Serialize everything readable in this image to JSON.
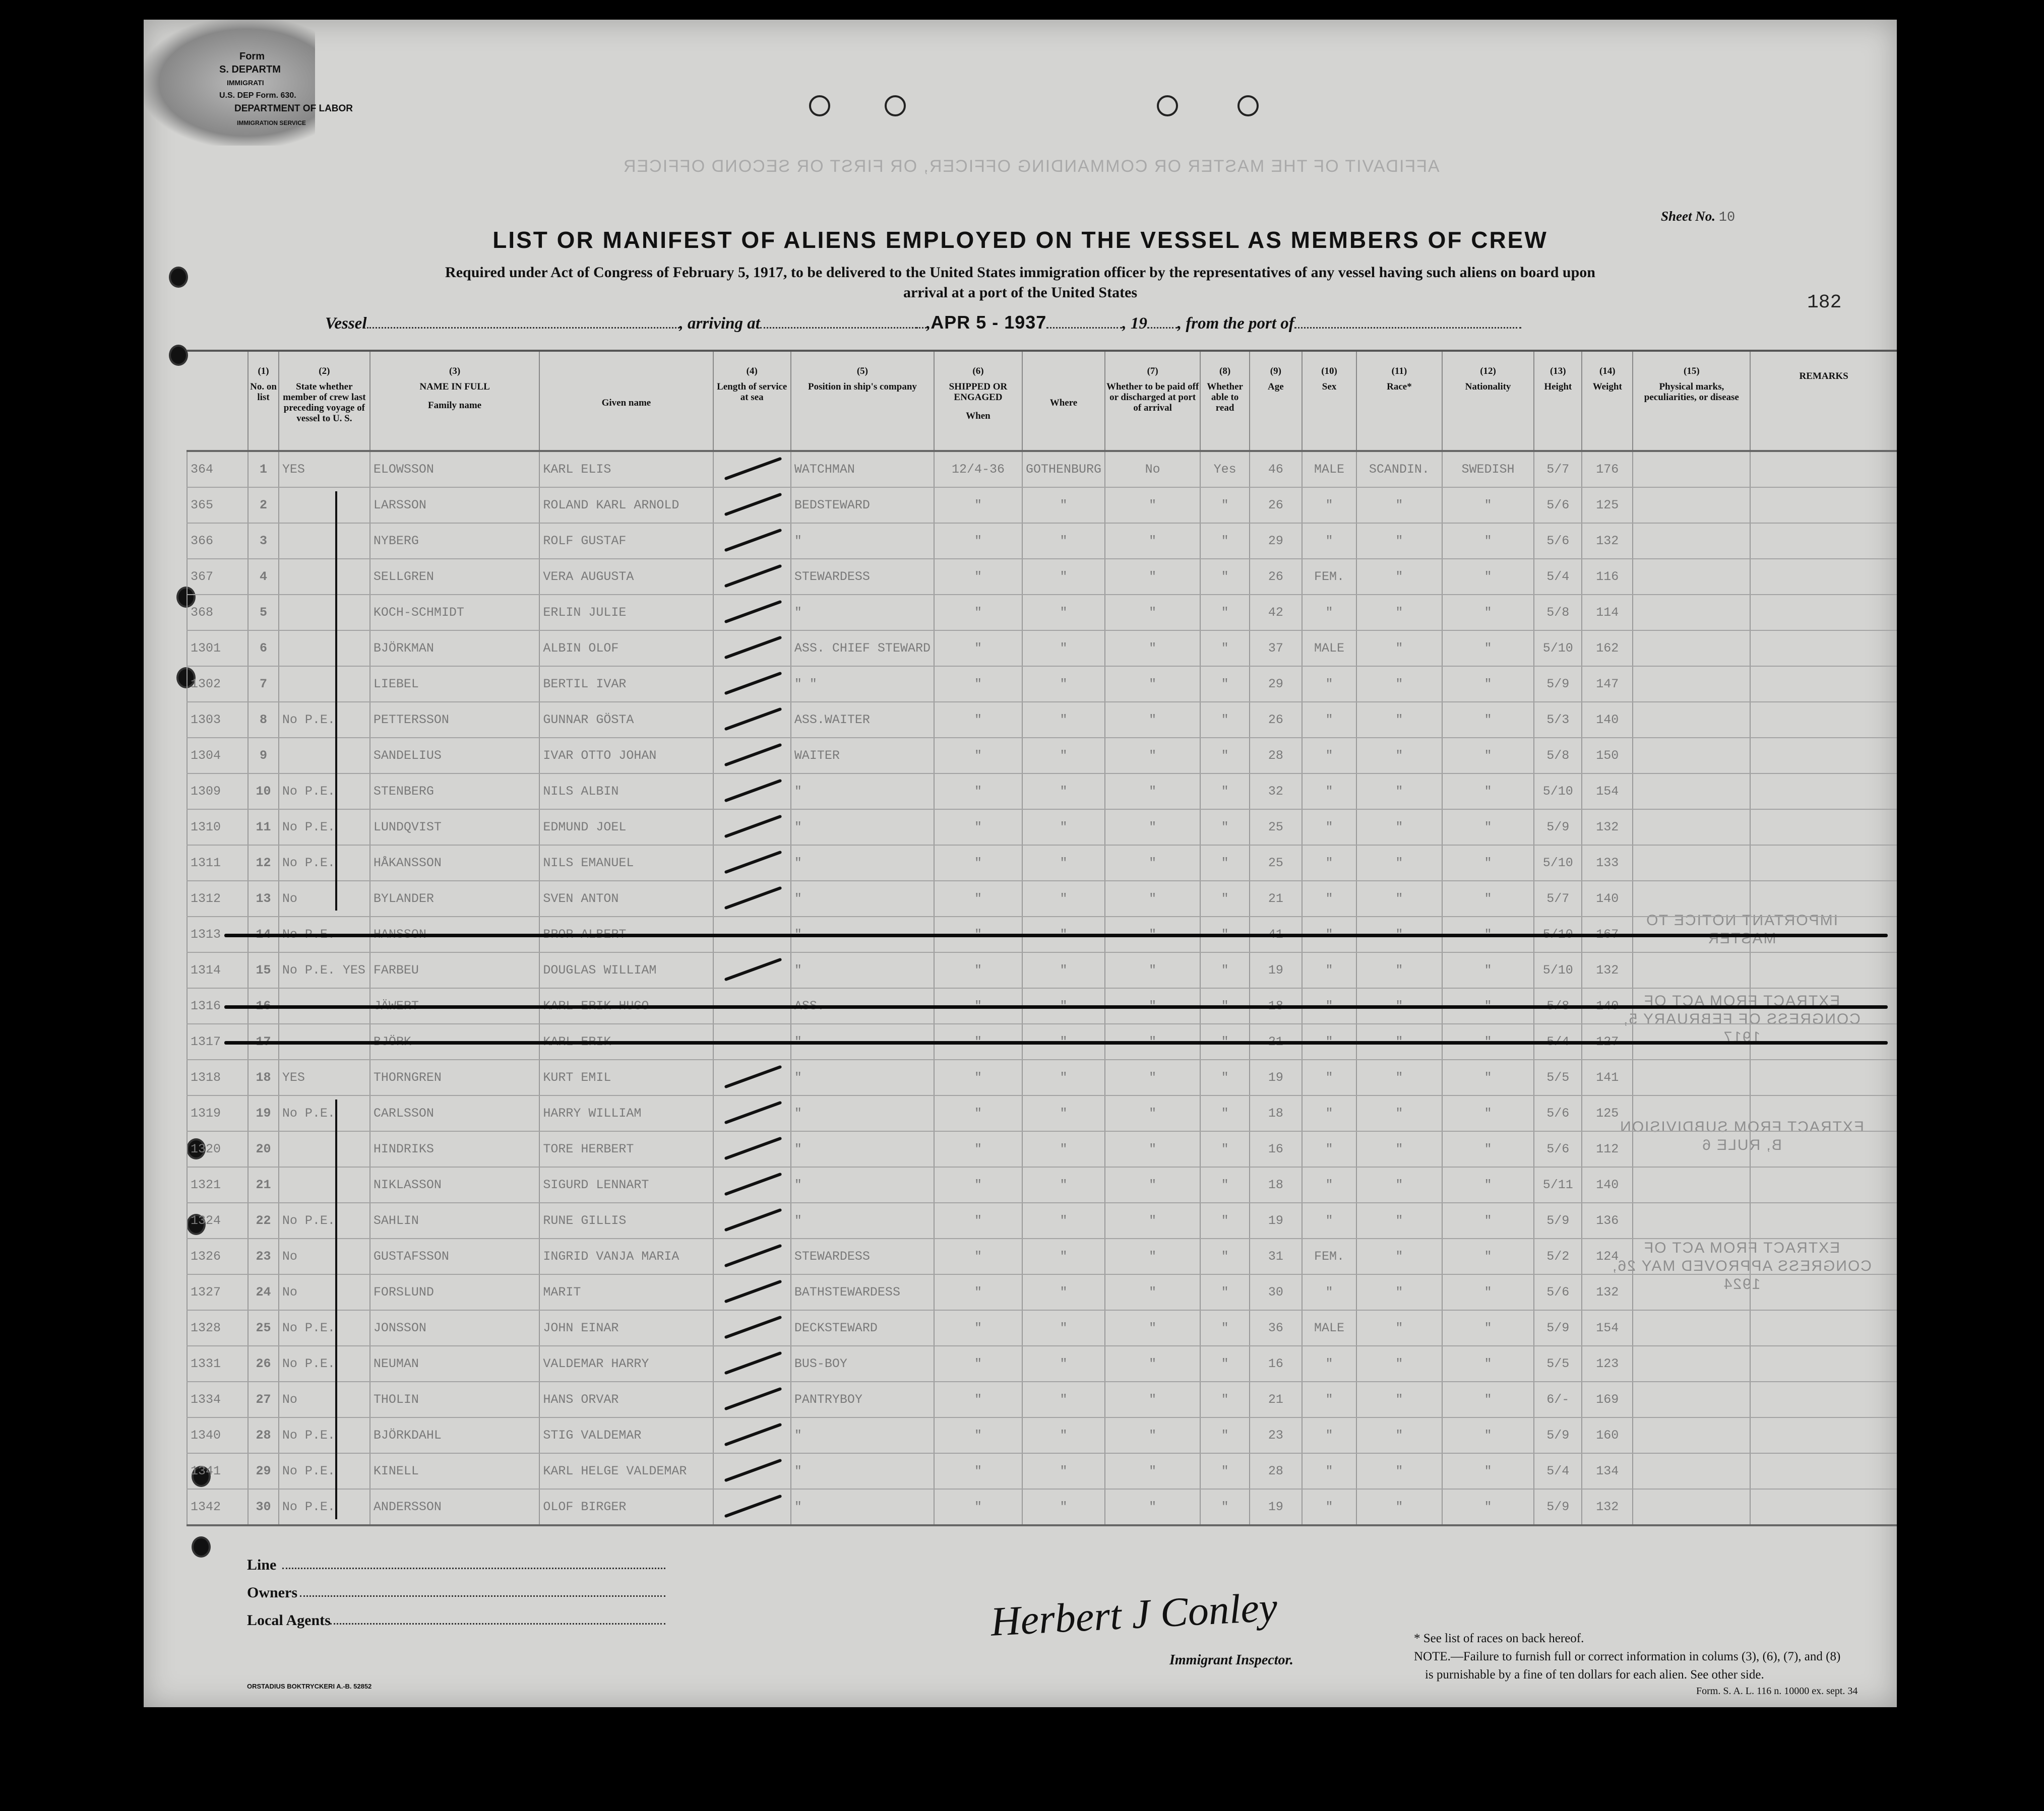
{
  "form_stamp": {
    "line1": "Form",
    "line2": "S. DEPARTM",
    "line3": "IMMIGRATI",
    "line4": "U.S. DEP  Form. 630.",
    "line5": "DEPARTMENT OF LABOR",
    "line6": "IMMIGRATION SERVICE"
  },
  "bleed_through": {
    "affidavit": "AFFIDAVIT OF THE MASTER OR COMMANDING OFFICER, OR FIRST OR SECOND OFFICER",
    "notice": "IMPORTANT NOTICE TO MASTER",
    "extract1": "EXTRACT FROM ACT OF CONGRESS OF FEBRUARY 5, 1917",
    "extract2": "EXTRACT FROM SUBDIVISION B, RULE 6",
    "extract3": "EXTRACT FROM ACT OF CONGRESS APPROVED MAY 26, 1924"
  },
  "header": {
    "sheet_label": "Sheet No.",
    "sheet_no": "10",
    "title": "LIST OR MANIFEST OF ALIENS EMPLOYED ON THE VESSEL AS MEMBERS OF CREW",
    "subtitle1": "Required under Act of Congress of February 5, 1917, to be delivered to the United States immigration officer by the representatives of any vessel having such aliens on board upon",
    "subtitle2": "arrival at a port of the United States",
    "vessel_label": "Vessel",
    "arriving_label": ", arriving at",
    "date_stamp": "APR 5 - 1937",
    "year_label": ", 19",
    "from_label": ", from the port of",
    "page_number": "182"
  },
  "columns": [
    {
      "num": "",
      "label": ""
    },
    {
      "num": "(1)",
      "label": "No. on list"
    },
    {
      "num": "(2)",
      "label": "State whether member of crew last preceding voyage of vessel to U. S."
    },
    {
      "num": "(3)",
      "label": "NAME IN FULL",
      "sub": "Family name"
    },
    {
      "num": "",
      "label": "",
      "sub": "Given name"
    },
    {
      "num": "(4)",
      "label": "Length of service at sea"
    },
    {
      "num": "(5)",
      "label": "Position in ship's company"
    },
    {
      "num": "(6)",
      "label": "SHIPPED OR ENGAGED",
      "sub": "When"
    },
    {
      "num": "",
      "label": "",
      "sub": "Where"
    },
    {
      "num": "(7)",
      "label": "Whether to be paid off or discharged at port of arrival"
    },
    {
      "num": "(8)",
      "label": "Whether able to read"
    },
    {
      "num": "(9)",
      "label": "Age"
    },
    {
      "num": "(10)",
      "label": "Sex"
    },
    {
      "num": "(11)",
      "label": "Race*"
    },
    {
      "num": "(12)",
      "label": "Nationality"
    },
    {
      "num": "(13)",
      "label": "Height"
    },
    {
      "num": "(14)",
      "label": "Weight"
    },
    {
      "num": "(15)",
      "label": "Physical marks, peculiarities, or disease"
    },
    {
      "num": "",
      "label": "REMARKS"
    }
  ],
  "rows": [
    {
      "struck": false,
      "cells": [
        "364",
        "1",
        "YES",
        "ELOWSSON",
        "KARL ELIS",
        "WATCHMAN",
        "12/4-36",
        "GOTHENBURG",
        "No",
        "Yes",
        "46",
        "MALE",
        "SCANDIN.",
        "SWEDISH",
        "5/7",
        "176"
      ]
    },
    {
      "struck": false,
      "cells": [
        "365",
        "2",
        "",
        "LARSSON",
        "ROLAND KARL ARNOLD",
        "BEDSTEWARD",
        "″",
        "″",
        "″",
        "″",
        "26",
        "″",
        "″",
        "″",
        "5/6",
        "125"
      ]
    },
    {
      "struck": false,
      "cells": [
        "366",
        "3",
        "",
        "NYBERG",
        "ROLF GUSTAF",
        "″",
        "″",
        "″",
        "″",
        "″",
        "29",
        "″",
        "″",
        "″",
        "5/6",
        "132"
      ]
    },
    {
      "struck": false,
      "cells": [
        "367",
        "4",
        "",
        "SELLGREN",
        "VERA AUGUSTA",
        "STEWARDESS",
        "″",
        "″",
        "″",
        "″",
        "26",
        "FEM.",
        "″",
        "″",
        "5/4",
        "116"
      ]
    },
    {
      "struck": false,
      "cells": [
        "368",
        "5",
        "",
        "KOCH-SCHMIDT",
        "ERLIN JULIE",
        "″",
        "″",
        "″",
        "″",
        "″",
        "42",
        "″",
        "″",
        "″",
        "5/8",
        "114"
      ]
    },
    {
      "struck": false,
      "cells": [
        "1301",
        "6",
        "",
        "BJÖRKMAN",
        "ALBIN OLOF",
        "ASS. CHIEF STEWARD",
        "″",
        "″",
        "″",
        "″",
        "37",
        "MALE",
        "″",
        "″",
        "5/10",
        "162"
      ]
    },
    {
      "struck": false,
      "cells": [
        "1302",
        "7",
        "",
        "LIEBEL",
        "BERTIL IVAR",
        "″ ″",
        "″",
        "″",
        "″",
        "″",
        "29",
        "″",
        "″",
        "″",
        "5/9",
        "147"
      ]
    },
    {
      "struck": false,
      "cells": [
        "1303",
        "8",
        "No P.E.",
        "PETTERSSON",
        "GUNNAR GÖSTA",
        "ASS.WAITER",
        "″",
        "″",
        "″",
        "″",
        "26",
        "″",
        "″",
        "″",
        "5/3",
        "140"
      ]
    },
    {
      "struck": false,
      "cells": [
        "1304",
        "9",
        "",
        "SANDELIUS",
        "IVAR OTTO JOHAN",
        "WAITER",
        "″",
        "″",
        "″",
        "″",
        "28",
        "″",
        "″",
        "″",
        "5/8",
        "150"
      ]
    },
    {
      "struck": false,
      "cells": [
        "1309",
        "10",
        "No P.E.",
        "STENBERG",
        "NILS ALBIN",
        "″",
        "″",
        "″",
        "″",
        "″",
        "32",
        "″",
        "″",
        "″",
        "5/10",
        "154"
      ]
    },
    {
      "struck": false,
      "cells": [
        "1310",
        "11",
        "No P.E.",
        "LUNDQVIST",
        "EDMUND JOEL",
        "″",
        "″",
        "″",
        "″",
        "″",
        "25",
        "″",
        "″",
        "″",
        "5/9",
        "132"
      ]
    },
    {
      "struck": false,
      "cells": [
        "1311",
        "12",
        "No P.E.",
        "HÅKANSSON",
        "NILS EMANUEL",
        "″",
        "″",
        "″",
        "″",
        "″",
        "25",
        "″",
        "″",
        "″",
        "5/10",
        "133"
      ]
    },
    {
      "struck": false,
      "cells": [
        "1312",
        "13",
        "No",
        "BYLANDER",
        "SVEN ANTON",
        "″",
        "″",
        "″",
        "″",
        "″",
        "21",
        "″",
        "″",
        "″",
        "5/7",
        "140"
      ]
    },
    {
      "struck": true,
      "cells": [
        "1313",
        "14",
        "No P.E.",
        "HANSSON",
        "BROR ALBERT",
        "″",
        "″",
        "″",
        "″",
        "″",
        "41",
        "″",
        "″",
        "″",
        "5/10",
        "167"
      ]
    },
    {
      "struck": false,
      "cells": [
        "1314",
        "15",
        "No P.E. YES",
        "FARBEU",
        "DOUGLAS WILLIAM",
        "″",
        "″",
        "″",
        "″",
        "″",
        "19",
        "″",
        "″",
        "″",
        "5/10",
        "132"
      ]
    },
    {
      "struck": true,
      "cells": [
        "1316",
        "16",
        "",
        "JÄWERT",
        "KARL ERIK HUGO",
        "ASS.",
        "″",
        "″",
        "″",
        "″",
        "18",
        "″",
        "″",
        "″",
        "5/8",
        "140"
      ]
    },
    {
      "struck": true,
      "cells": [
        "1317",
        "17",
        "",
        "BJÖRK",
        "KARL ERIK",
        "″",
        "″",
        "″",
        "″",
        "″",
        "21",
        "″",
        "″",
        "″",
        "5/4",
        "127"
      ]
    },
    {
      "struck": false,
      "cells": [
        "1318",
        "18",
        "YES",
        "THORNGREN",
        "KURT EMIL",
        "″",
        "″",
        "″",
        "″",
        "″",
        "19",
        "″",
        "″",
        "″",
        "5/5",
        "141"
      ]
    },
    {
      "struck": false,
      "cells": [
        "1319",
        "19",
        "No P.E.",
        "CARLSSON",
        "HARRY WILLIAM",
        "″",
        "″",
        "″",
        "″",
        "″",
        "18",
        "″",
        "″",
        "″",
        "5/6",
        "125"
      ]
    },
    {
      "struck": false,
      "cells": [
        "1320",
        "20",
        "",
        "HINDRIKS",
        "TORE HERBERT",
        "″",
        "″",
        "″",
        "″",
        "″",
        "16",
        "″",
        "″",
        "″",
        "5/6",
        "112"
      ]
    },
    {
      "struck": false,
      "cells": [
        "1321",
        "21",
        "",
        "NIKLASSON",
        "SIGURD LENNART",
        "″",
        "″",
        "″",
        "″",
        "″",
        "18",
        "″",
        "″",
        "″",
        "5/11",
        "140"
      ]
    },
    {
      "struck": false,
      "cells": [
        "1324",
        "22",
        "No P.E.",
        "SAHLIN",
        "RUNE GILLIS",
        "″",
        "″",
        "″",
        "″",
        "″",
        "19",
        "″",
        "″",
        "″",
        "5/9",
        "136"
      ]
    },
    {
      "struck": false,
      "cells": [
        "1326",
        "23",
        "No",
        "GUSTAFSSON",
        "INGRID VANJA MARIA",
        "STEWARDESS",
        "″",
        "″",
        "″",
        "″",
        "31",
        "FEM.",
        "″",
        "″",
        "5/2",
        "124"
      ]
    },
    {
      "struck": false,
      "cells": [
        "1327",
        "24",
        "No",
        "FORSLUND",
        "MARIT",
        "BATHSTEWARDESS",
        "″",
        "″",
        "″",
        "″",
        "30",
        "″",
        "″",
        "″",
        "5/6",
        "132"
      ]
    },
    {
      "struck": false,
      "cells": [
        "1328",
        "25",
        "No P.E.",
        "JONSSON",
        "JOHN EINAR",
        "DECKSTEWARD",
        "″",
        "″",
        "″",
        "″",
        "36",
        "MALE",
        "″",
        "″",
        "5/9",
        "154"
      ]
    },
    {
      "struck": false,
      "cells": [
        "1331",
        "26",
        "No P.E.",
        "NEUMAN",
        "VALDEMAR HARRY",
        "BUS-BOY",
        "″",
        "″",
        "″",
        "″",
        "16",
        "″",
        "″",
        "″",
        "5/5",
        "123"
      ]
    },
    {
      "struck": false,
      "cells": [
        "1334",
        "27",
        "No",
        "THOLIN",
        "HANS ORVAR",
        "PANTRYBOY",
        "″",
        "″",
        "″",
        "″",
        "21",
        "″",
        "″",
        "″",
        "6/-",
        "169"
      ]
    },
    {
      "struck": false,
      "cells": [
        "1340",
        "28",
        "No P.E.",
        "BJÖRKDAHL",
        "STIG VALDEMAR",
        "″",
        "″",
        "″",
        "″",
        "″",
        "23",
        "″",
        "″",
        "″",
        "5/9",
        "160"
      ]
    },
    {
      "struck": false,
      "cells": [
        "1341",
        "29",
        "No P.E.",
        "KINELL",
        "KARL HELGE VALDEMAR",
        "″",
        "″",
        "″",
        "″",
        "″",
        "28",
        "″",
        "″",
        "″",
        "5/4",
        "134"
      ]
    },
    {
      "struck": false,
      "cells": [
        "1342",
        "30",
        "No P.E.",
        "ANDERSSON",
        "OLOF BIRGER",
        "″",
        "″",
        "″",
        "″",
        "″",
        "19",
        "″",
        "″",
        "″",
        "5/9",
        "132"
      ]
    }
  ],
  "footer": {
    "line_label": "Line",
    "owners_label": "Owners",
    "agents_label": "Local Agents",
    "printer": "ORSTADIUS BOKTRYCKERI A.-B. 52852",
    "signature": "Herbert J Conley",
    "inspector_label": "Immigrant Inspector.",
    "race_note": "* See list of races on back hereof.",
    "note1": "NOTE.—Failure to furnish full or correct information in colums (3), (6), (7), and (8)",
    "note2": "is purnishable by a fine of ten dollars for each alien.  See other side.",
    "form_no": "Form. S. A. L. 116 n. 10000 ex. sept. 34"
  }
}
